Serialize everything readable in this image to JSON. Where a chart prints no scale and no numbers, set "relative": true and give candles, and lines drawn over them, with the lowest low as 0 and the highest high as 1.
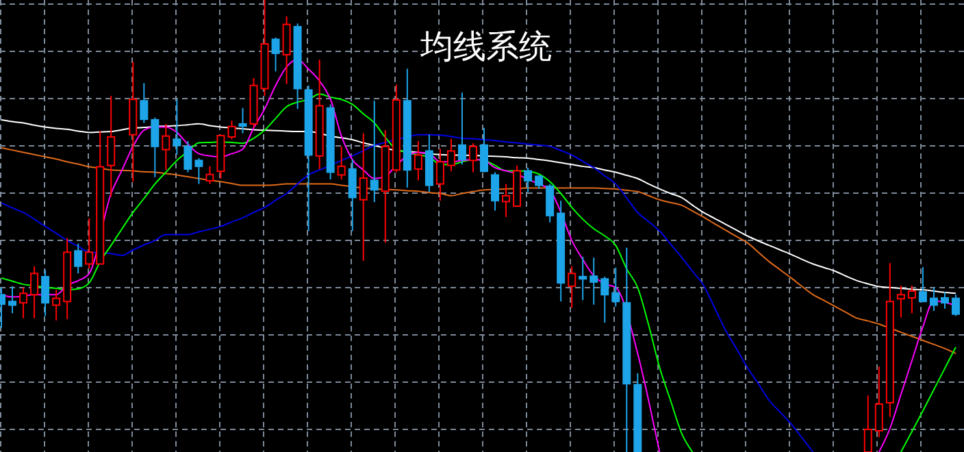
{
  "chart_data": {
    "type": "candlestick",
    "title": "均线系统",
    "relative": true,
    "grid": true,
    "categories": [
      null,
      null,
      null,
      null,
      null,
      null,
      null,
      null,
      null,
      null,
      null,
      null,
      null,
      null,
      null,
      null,
      null,
      null,
      null,
      null,
      null,
      null,
      null,
      null,
      null,
      null,
      null,
      null,
      null,
      null,
      null,
      null,
      null,
      null,
      null,
      null,
      null,
      null,
      null,
      null,
      null,
      null,
      null,
      null,
      null,
      null,
      null,
      null,
      null,
      null,
      null,
      null,
      null,
      null,
      null,
      null,
      null,
      null,
      null,
      null,
      null,
      null,
      null,
      null,
      null,
      null,
      null,
      null,
      null,
      null,
      null,
      null,
      null,
      null,
      null,
      null,
      null,
      null,
      null,
      null,
      null,
      null,
      null,
      null,
      null,
      null,
      null,
      null
    ],
    "colors": [
      "#1ea5e9",
      "#1ea5e9",
      "#ff0000",
      "#ff0000",
      "#1ea5e9",
      "#ff0000",
      "#ff0000",
      "#1ea5e9",
      "#ff0000",
      "#ff0000",
      "#ff0000",
      null,
      "#ff0000",
      "#1ea5e9",
      "#1ea5e9",
      "#ff0000",
      "#1ea5e9",
      "#1ea5e9",
      "#1ea5e9",
      "#ff0000",
      "#ff0000",
      "#ff0000",
      "#1ea5e9",
      "#ff0000",
      "#ff0000",
      "#1ea5e9",
      "#ff0000",
      "#1ea5e9",
      "#1ea5e9",
      "#ff0000",
      "#1ea5e9",
      "#ff0000",
      "#1ea5e9",
      "#ff0000",
      "#1ea5e9",
      "#ff0000",
      "#ff0000",
      "#1ea5e9",
      "#ff0000",
      "#1ea5e9",
      "#ff0000",
      "#ff0000",
      "#1ea5e9",
      "#ff0000",
      "#1ea5e9",
      "#1ea5e9",
      "#ff0000",
      "#ff0000",
      "#1ea5e9",
      "#1ea5e9",
      "#1ea5e9",
      "#1ea5e9",
      "#ff0000",
      "#1ea5e9",
      "#1ea5e9",
      "#1ea5e9",
      "#1ea5e9",
      "#1ea5e9",
      "#1ea5e9",
      null,
      null,
      null,
      null,
      null,
      null,
      null,
      null,
      null,
      null,
      null,
      null,
      null,
      null,
      null,
      null,
      null,
      null,
      null,
      null,
      "#ff0000",
      "#ff0000",
      "#ff0000",
      "#ff0000",
      "#ff0000",
      "#1ea5e9",
      "#1ea5e9",
      "#1ea5e9",
      "#1ea5e9"
    ],
    "ohlc": [
      [
        0.348,
        0.364,
        0.275,
        0.327
      ],
      [
        0.333,
        0.367,
        0.307,
        0.325
      ],
      [
        0.33,
        0.364,
        0.296,
        0.351
      ],
      [
        0.348,
        0.411,
        0.296,
        0.395
      ],
      [
        0.388,
        0.403,
        0.301,
        0.33
      ],
      [
        0.325,
        0.359,
        0.291,
        0.34
      ],
      [
        0.333,
        0.473,
        0.294,
        0.442
      ],
      [
        0.445,
        0.461,
        0.395,
        0.411
      ],
      [
        0.416,
        0.517,
        0.406,
        0.442
      ],
      [
        0.416,
        0.71,
        0.416,
        0.631
      ],
      [
        0.634,
        0.788,
        0.565,
        0.697
      ],
      null,
      [
        0.702,
        0.863,
        0.598,
        0.78
      ],
      [
        0.777,
        0.816,
        0.728,
        0.736
      ],
      [
        0.735,
        0.74,
        0.608,
        0.676
      ],
      [
        0.669,
        0.726,
        0.624,
        0.699
      ],
      [
        0.692,
        0.78,
        0.658,
        0.678
      ],
      [
        0.676,
        0.688,
        0.619,
        0.626
      ],
      [
        0.645,
        0.65,
        0.593,
        0.632
      ],
      [
        0.6,
        0.632,
        0.593,
        0.614
      ],
      [
        0.621,
        0.702,
        0.605,
        0.7
      ],
      [
        0.697,
        0.733,
        0.692,
        0.72
      ],
      [
        0.726,
        0.761,
        0.705,
        0.721
      ],
      [
        0.726,
        0.827,
        0.718,
        0.811
      ],
      [
        0.804,
        1,
        0.788,
        0.903
      ],
      [
        0.913,
        0.917,
        0.842,
        0.882
      ],
      [
        0.879,
        0.964,
        0.814,
        0.946
      ],
      [
        0.941,
        0.948,
        0.759,
        0.804
      ],
      [
        0.801,
        0.811,
        0.489,
        0.657
      ],
      [
        0.655,
        0.868,
        0.626,
        0.766
      ],
      [
        0.761,
        0.769,
        0.603,
        0.619
      ],
      [
        0.613,
        0.676,
        0.603,
        0.632
      ],
      [
        0.626,
        0.647,
        0.489,
        0.563
      ],
      [
        0.558,
        0.705,
        0.423,
        0.606
      ],
      [
        0.601,
        0.777,
        0.553,
        0.58
      ],
      [
        0.577,
        0.712,
        0.463,
        0.676
      ],
      [
        0.624,
        0.813,
        0.619,
        0.779
      ],
      [
        0.777,
        0.848,
        0.585,
        0.624
      ],
      [
        0.626,
        0.688,
        0.601,
        0.657
      ],
      [
        0.666,
        0.702,
        0.575,
        0.59
      ],
      [
        0.593,
        0.671,
        0.556,
        0.642
      ],
      [
        0.634,
        0.693,
        0.621,
        0.666
      ],
      [
        0.679,
        0.795,
        0.636,
        0.647
      ],
      [
        0.645,
        0.683,
        0.619,
        0.676
      ],
      [
        0.679,
        0.717,
        0.619,
        0.621
      ],
      [
        0.613,
        0.619,
        0.534,
        0.556
      ],
      [
        0.554,
        0.593,
        0.52,
        0.567
      ],
      [
        0.544,
        0.634,
        0.544,
        0.622
      ],
      [
        0.622,
        0.629,
        0.575,
        0.6
      ],
      [
        0.61,
        0.613,
        0.582,
        0.59
      ],
      [
        0.588,
        0.593,
        0.508,
        0.523
      ],
      [
        0.528,
        0.556,
        0.333,
        0.374
      ],
      [
        0.367,
        0.411,
        0.319,
        0.395
      ],
      [
        0.388,
        0.432,
        0.336,
        0.383
      ],
      [
        0.389,
        0.43,
        0.326,
        0.376
      ],
      [
        0.383,
        0.388,
        0.286,
        0.348
      ],
      [
        0.352,
        0.408,
        0.322,
        0.333
      ],
      [
        0.33,
        0.452,
        0,
        0.151
      ],
      [
        0.149,
        0.174,
        0,
        0
      ],
      null,
      null,
      null,
      null,
      null,
      null,
      null,
      null,
      null,
      null,
      null,
      null,
      null,
      null,
      null,
      null,
      null,
      null,
      null,
      null,
      [
        0,
        0.125,
        0,
        0.05
      ],
      [
        0.047,
        0.189,
        0.033,
        0.106
      ],
      [
        0.109,
        0.418,
        0.078,
        0.333
      ],
      [
        0.339,
        0.368,
        0.298,
        0.348
      ],
      [
        0.341,
        0.368,
        0.307,
        0.356
      ],
      [
        0.354,
        0.409,
        0.333,
        0.333
      ],
      [
        0.34,
        0.364,
        0.312,
        0.325
      ],
      [
        0.341,
        0.354,
        0.317,
        0.33
      ],
      [
        0.34,
        0.348,
        0.301,
        0.305
      ]
    ],
    "series": [
      {
        "type": "line",
        "color": "#ffffff",
        "values": [
          0.735,
          0.731,
          0.728,
          0.723,
          0.719,
          0.716,
          0.714,
          0.71,
          0.707,
          0.708,
          0.709,
          0.713,
          0.717,
          0.718,
          0.72,
          0.721,
          0.722,
          0.724,
          0.726,
          0.722,
          0.719,
          0.717,
          0.715,
          0.713,
          0.712,
          0.711,
          0.71,
          0.709,
          0.709,
          0.705,
          0.699,
          0.695,
          0.691,
          0.684,
          0.678,
          0.672,
          0.667,
          0.665,
          0.663,
          0.66,
          0.658,
          0.657,
          0.657,
          0.656,
          0.655,
          0.654,
          0.653,
          0.651,
          0.65,
          0.647,
          0.644,
          0.64,
          0.636,
          0.632,
          0.629,
          0.624,
          0.619,
          0.612,
          0.605,
          0.593,
          0.582,
          0.572,
          0.563,
          0.546,
          0.53,
          0.517,
          0.504,
          0.491,
          0.478,
          0.467,
          0.457,
          0.447,
          0.437,
          0.426,
          0.416,
          0.408,
          0.4,
          0.389,
          0.379,
          0.372,
          0.366,
          0.364,
          0.362,
          0.36,
          0.359,
          0.356,
          0.353,
          0.351
        ]
      },
      {
        "type": "line",
        "color": "#e06a1a",
        "values": [
          0.673,
          0.668,
          0.663,
          0.658,
          0.653,
          0.648,
          0.642,
          0.637,
          0.631,
          0.628,
          0.624,
          0.623,
          0.622,
          0.62,
          0.619,
          0.616,
          0.613,
          0.609,
          0.605,
          0.601,
          0.598,
          0.594,
          0.59,
          0.59,
          0.59,
          0.591,
          0.593,
          0.593,
          0.593,
          0.593,
          0.593,
          0.59,
          0.587,
          0.584,
          0.582,
          0.581,
          0.58,
          0.578,
          0.577,
          0.574,
          0.572,
          0.567,
          0.572,
          0.576,
          0.58,
          0.581,
          0.582,
          0.583,
          0.584,
          0.584,
          0.584,
          0.584,
          0.584,
          0.584,
          0.584,
          0.583,
          0.582,
          0.579,
          0.576,
          0.567,
          0.558,
          0.552,
          0.546,
          0.533,
          0.52,
          0.505,
          0.491,
          0.477,
          0.463,
          0.442,
          0.421,
          0.403,
          0.385,
          0.366,
          0.348,
          0.335,
          0.322,
          0.309,
          0.296,
          0.29,
          0.283,
          0.274,
          0.265,
          0.256,
          0.247,
          0.238,
          0.229,
          0.218
        ]
      },
      {
        "type": "line",
        "color": "#0000e6",
        "values": [
          0.551,
          0.54,
          0.53,
          0.515,
          0.499,
          0.484,
          0.468,
          0.455,
          0.442,
          0.441,
          0.439,
          0.435,
          0.447,
          0.458,
          0.468,
          0.481,
          0.481,
          0.481,
          0.487,
          0.493,
          0.499,
          0.509,
          0.518,
          0.53,
          0.541,
          0.557,
          0.572,
          0.593,
          0.613,
          0.624,
          0.634,
          0.645,
          0.655,
          0.667,
          0.678,
          0.685,
          0.691,
          0.697,
          0.702,
          0.702,
          0.701,
          0.698,
          0.694,
          0.693,
          0.691,
          0.689,
          0.686,
          0.684,
          0.681,
          0.679,
          0.676,
          0.667,
          0.657,
          0.643,
          0.629,
          0.611,
          0.593,
          0.562,
          0.53,
          0.51,
          0.489,
          0.46,
          0.431,
          0.4,
          0.369,
          0.32,
          0.27,
          0.229,
          0.187,
          0.151,
          0.114,
          0.088,
          0.062,
          0.031,
          0,
          null,
          null,
          null,
          null,
          null,
          null,
          null,
          null,
          null,
          null,
          null,
          null,
          null
        ]
      },
      {
        "type": "line",
        "color": "#00ff00",
        "values": [
          0.385,
          0.378,
          0.371,
          0.368,
          0.364,
          0.362,
          0.359,
          0.361,
          0.374,
          0.421,
          0.457,
          0.494,
          0.53,
          0.561,
          0.593,
          0.619,
          0.645,
          0.665,
          0.684,
          0.685,
          0.686,
          0.685,
          0.683,
          0.694,
          0.712,
          0.738,
          0.764,
          0.774,
          0.78,
          0.792,
          0.785,
          0.78,
          0.769,
          0.748,
          0.728,
          0.696,
          0.67,
          0.663,
          0.657,
          0.653,
          0.636,
          0.636,
          0.642,
          0.647,
          0.645,
          0.634,
          0.622,
          0.622,
          0.621,
          0.615,
          0.598,
          0.572,
          0.541,
          0.515,
          0.494,
          0.478,
          0.457,
          0.405,
          0.364,
          0.281,
          0.187,
          0.114,
          0.042,
          0,
          null,
          null,
          null,
          null,
          null,
          null,
          null,
          null,
          null,
          null,
          null,
          null,
          null,
          null,
          null,
          null,
          null,
          null,
          0,
          0.045,
          0.091,
          0.138,
          0.185,
          0.232
        ]
      },
      {
        "type": "line",
        "color": "#ff00ff",
        "values": [
          0.348,
          0.343,
          0.345,
          0.348,
          0.348,
          0.348,
          0.369,
          0.379,
          0.395,
          null,
          0.572,
          0.624,
          0.676,
          0.712,
          0.719,
          0.719,
          0.707,
          0.681,
          0.66,
          0.655,
          0.653,
          0.66,
          0.67,
          0.717,
          0.759,
          0.811,
          0.852,
          0.868,
          0.847,
          0.821,
          0.78,
          0.699,
          0.647,
          0.624,
          0.605,
          0.61,
          0.634,
          0.655,
          0.663,
          0.66,
          0.642,
          0.642,
          0.645,
          0.647,
          0.645,
          0.629,
          0.622,
          0.615,
          0.603,
          0.593,
          0.58,
          0.53,
          0.468,
          0.426,
          0.39,
          0.372,
          0.364,
          null,
          0.218,
          0.114,
          0,
          null,
          null,
          null,
          null,
          null,
          null,
          null,
          null,
          null,
          null,
          null,
          null,
          null,
          null,
          null,
          null,
          null,
          null,
          null,
          0,
          0.052,
          0.127,
          0.202,
          0.277,
          0.335,
          0.331,
          0.324
        ]
      }
    ]
  }
}
